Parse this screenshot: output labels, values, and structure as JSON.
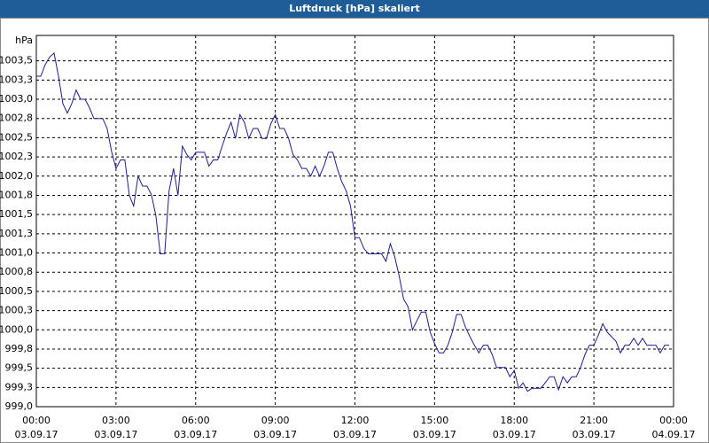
{
  "chart_data": {
    "type": "line",
    "title": "Luftdruck [hPa] skaliert",
    "y_label": "hPa",
    "xlim": [
      0,
      1440
    ],
    "xticks": [
      {
        "value": 0,
        "label": "00:00"
      },
      {
        "value": 180,
        "label": "03:00"
      },
      {
        "value": 360,
        "label": "06:00"
      },
      {
        "value": 540,
        "label": "09:00"
      },
      {
        "value": 720,
        "label": "12:00"
      },
      {
        "value": 900,
        "label": "15:00"
      },
      {
        "value": 1080,
        "label": "18:00"
      },
      {
        "value": 1260,
        "label": "21:00"
      },
      {
        "value": 1440,
        "label": "00:00"
      }
    ],
    "xtick_dates": [
      "03.09.17",
      "03.09.17",
      "03.09.17",
      "03.09.17",
      "03.09.17",
      "03.09.17",
      "03.09.17",
      "03.09.17",
      "04.09.17"
    ],
    "ylim": [
      999,
      1003.83
    ],
    "yticks": [
      {
        "value": 999,
        "label": "999,0"
      },
      {
        "value": 999.25,
        "label": "999,3"
      },
      {
        "value": 999.5,
        "label": "999,5"
      },
      {
        "value": 999.75,
        "label": "999,8"
      },
      {
        "value": 1000,
        "label": "1000,0"
      },
      {
        "value": 1000.25,
        "label": "1000,3"
      },
      {
        "value": 1000.5,
        "label": "1000,5"
      },
      {
        "value": 1000.75,
        "label": "1000,8"
      },
      {
        "value": 1001,
        "label": "1001,0"
      },
      {
        "value": 1001.25,
        "label": "1001,3"
      },
      {
        "value": 1001.5,
        "label": "1001,5"
      },
      {
        "value": 1001.75,
        "label": "1001,8"
      },
      {
        "value": 1002,
        "label": "1002,0"
      },
      {
        "value": 1002.25,
        "label": "1002,3"
      },
      {
        "value": 1002.5,
        "label": "1002,5"
      },
      {
        "value": 1002.75,
        "label": "1002,8"
      },
      {
        "value": 1003,
        "label": "1003,0"
      },
      {
        "value": 1003.25,
        "label": "1003,3"
      },
      {
        "value": 1003.5,
        "label": "1003,5"
      }
    ],
    "grid": true,
    "x": [
      0,
      10,
      20,
      30,
      40,
      50,
      60,
      70,
      80,
      90,
      100,
      110,
      120,
      130,
      140,
      150,
      160,
      170,
      180,
      190,
      200,
      210,
      220,
      230,
      240,
      250,
      260,
      270,
      280,
      290,
      300,
      310,
      320,
      330,
      340,
      350,
      360,
      370,
      380,
      390,
      400,
      410,
      420,
      430,
      440,
      450,
      460,
      470,
      480,
      490,
      500,
      510,
      520,
      530,
      540,
      550,
      560,
      570,
      580,
      590,
      600,
      610,
      620,
      630,
      640,
      650,
      660,
      670,
      680,
      690,
      700,
      710,
      720,
      730,
      740,
      750,
      760,
      770,
      780,
      790,
      800,
      810,
      820,
      830,
      840,
      850,
      860,
      870,
      880,
      890,
      900,
      910,
      920,
      930,
      940,
      950,
      960,
      970,
      980,
      990,
      1000,
      1010,
      1020,
      1030,
      1040,
      1050,
      1060,
      1070,
      1080,
      1090,
      1100,
      1110,
      1120,
      1130,
      1140,
      1150,
      1160,
      1170,
      1180,
      1190,
      1200,
      1210,
      1220,
      1230,
      1240,
      1250,
      1260,
      1270,
      1280,
      1290,
      1300,
      1310,
      1320,
      1330,
      1340,
      1350,
      1360,
      1370,
      1380,
      1390,
      1400,
      1410,
      1420,
      1430
    ],
    "series": [
      {
        "color": "#1c1c9c",
        "values": [
          1003.3,
          1003.3,
          1003.45,
          1003.55,
          1003.6,
          1003.3,
          1002.94,
          1002.82,
          1002.94,
          1003.12,
          1003.0,
          1003.0,
          1002.89,
          1002.75,
          1002.75,
          1002.75,
          1002.62,
          1002.32,
          1002.1,
          1002.21,
          1002.21,
          1001.75,
          1001.61,
          1002.0,
          1001.87,
          1001.87,
          1001.76,
          1001.49,
          1000.99,
          1000.99,
          1001.81,
          1002.1,
          1001.75,
          1002.39,
          1002.28,
          1002.21,
          1002.31,
          1002.31,
          1002.31,
          1002.13,
          1002.21,
          1002.21,
          1002.39,
          1002.56,
          1002.7,
          1002.49,
          1002.8,
          1002.7,
          1002.49,
          1002.62,
          1002.62,
          1002.49,
          1002.49,
          1002.68,
          1002.8,
          1002.62,
          1002.62,
          1002.49,
          1002.28,
          1002.21,
          1002.1,
          1002.1,
          1002.0,
          1002.13,
          1002.0,
          1002.13,
          1002.31,
          1002.31,
          1002.1,
          1001.93,
          1001.81,
          1001.61,
          1001.2,
          1001.2,
          1001.06,
          1000.99,
          1000.99,
          1000.99,
          1000.99,
          1000.89,
          1001.12,
          1000.95,
          1000.7,
          1000.4,
          1000.3,
          1000.0,
          1000.12,
          1000.23,
          1000.23,
          999.97,
          999.82,
          999.7,
          999.7,
          999.8,
          999.97,
          1000.2,
          1000.2,
          1000.03,
          999.91,
          999.8,
          999.7,
          999.8,
          999.8,
          999.68,
          999.51,
          999.51,
          999.51,
          999.39,
          999.47,
          999.24,
          999.31,
          999.2,
          999.24,
          999.24,
          999.24,
          999.31,
          999.39,
          999.39,
          999.22,
          999.39,
          999.31,
          999.39,
          999.39,
          999.51,
          999.68,
          999.8,
          999.8,
          999.93,
          1000.08,
          999.97,
          999.91,
          999.85,
          999.7,
          999.8,
          999.8,
          999.89,
          999.8,
          999.89,
          999.8,
          999.8,
          999.8,
          999.7,
          999.8,
          999.8
        ]
      }
    ]
  }
}
